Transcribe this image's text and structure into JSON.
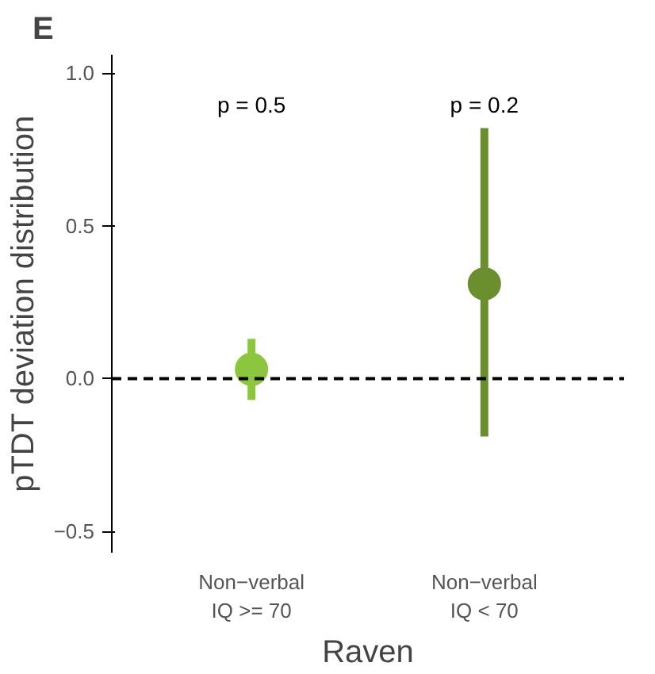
{
  "chart_data": {
    "type": "scatter",
    "xlabel": "Raven",
    "ylabel": "pTDT deviation distribution",
    "categories": [
      "Non−verbal\nIQ >= 70",
      "Non−verbal\nIQ < 70"
    ],
    "values": [
      0.03,
      0.31
    ],
    "errors": [
      [
        -0.07,
        0.13
      ],
      [
        -0.19,
        0.82
      ]
    ],
    "colors": [
      "#8cc63f",
      "#6b8e2f"
    ],
    "marker": "circle",
    "ylim": [
      -0.57,
      1.06
    ],
    "yticks": [
      {
        "value": -0.5,
        "label": "−0.5"
      },
      {
        "value": 0,
        "label": "0.0"
      },
      0.5,
      {
        "value": 1,
        "label": "1.0"
      }
    ],
    "grid": false,
    "ref_lines": [
      {
        "axis": "y",
        "value": 0,
        "color": "#000000",
        "line_style": "dashed"
      }
    ],
    "annotations": [
      "E",
      "p = 0.5",
      "p = 0.2"
    ]
  }
}
